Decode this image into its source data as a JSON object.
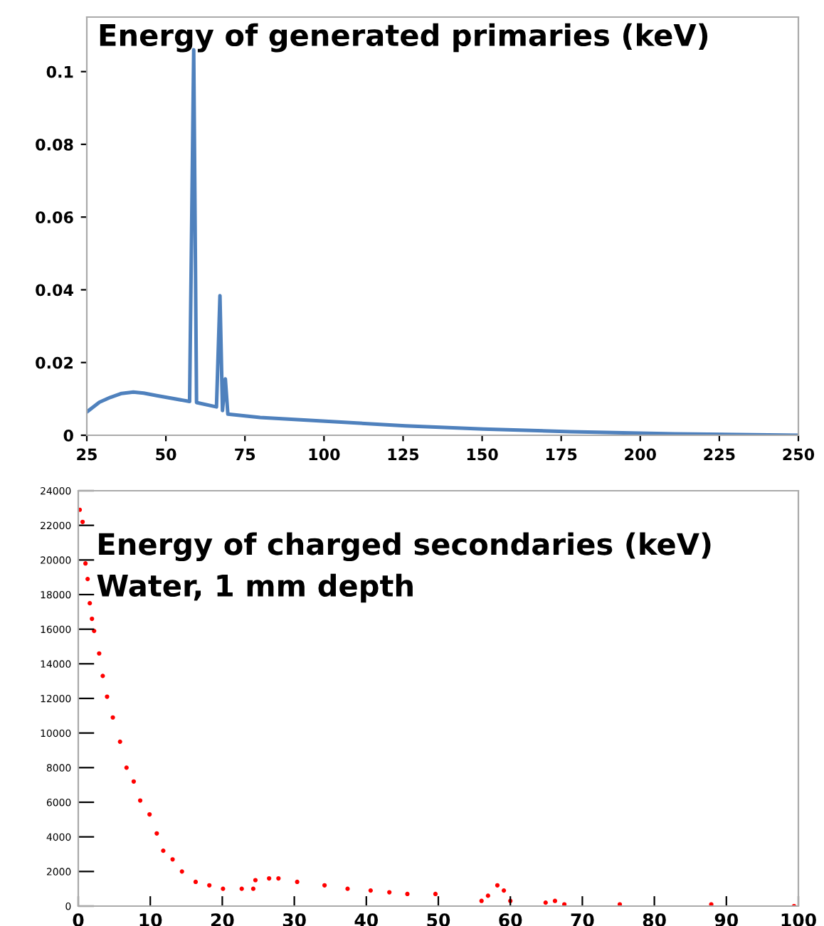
{
  "chart_data": [
    {
      "type": "line",
      "title": "Energy of generated primaries (keV)",
      "series": [
        {
          "color": "#4f81bd",
          "x": [
            25,
            29,
            32.4,
            36,
            39.7,
            43,
            47.1,
            57.5,
            58.8,
            59.7,
            66,
            67.1,
            67.9,
            68.8,
            69.6,
            79.8,
            99.5,
            125.7,
            150.4,
            178,
            210.8,
            250
          ],
          "values": [
            0.0064,
            0.0091,
            0.0104,
            0.0115,
            0.0119,
            0.0116,
            0.0109,
            0.0093,
            0.106,
            0.009,
            0.0078,
            0.0384,
            0.0068,
            0.0155,
            0.0058,
            0.0049,
            0.0039,
            0.0026,
            0.0017,
            0.001,
            0.0004,
            0.0
          ]
        }
      ],
      "xlim": [
        25,
        250
      ],
      "xticks": [
        25,
        50,
        75,
        100,
        125,
        150,
        175,
        200,
        225,
        250
      ],
      "ylim": [
        0,
        0.115
      ],
      "yticks": [
        0,
        0.02,
        0.04,
        0.06,
        0.08,
        0.1
      ],
      "grid": false,
      "marker": "none",
      "line_style": "solid"
    },
    {
      "type": "scatter",
      "title": "Energy of charged secondaries (keV)",
      "subtitle": "Water, 1 mm depth",
      "series": [
        {
          "color": "#ff0000",
          "x": [
            0.2,
            0.6,
            1.0,
            1.3,
            1.6,
            1.9,
            2.2,
            2.9,
            3.4,
            4.0,
            4.8,
            5.8,
            6.7,
            7.7,
            8.6,
            9.9,
            10.9,
            11.8,
            13.1,
            14.4,
            16.3,
            18.2,
            20.1,
            22.7,
            24.3,
            24.6,
            26.5,
            27.8,
            30.4,
            34.2,
            37.4,
            40.6,
            43.2,
            45.7,
            49.6,
            56.0,
            56.9,
            58.2,
            59.1,
            60.0,
            64.9,
            66.2,
            67.5,
            75.2,
            87.9,
            99.4
          ],
          "values": [
            22900,
            22200,
            19800,
            18900,
            17500,
            16600,
            15900,
            14600,
            13300,
            12100,
            10900,
            9500,
            8000,
            7200,
            6100,
            5300,
            4200,
            3200,
            2700,
            2000,
            1400,
            1200,
            1000,
            1000,
            1000,
            1500,
            1600,
            1600,
            1400,
            1200,
            1000,
            900,
            800,
            700,
            700,
            300,
            600,
            1200,
            900,
            300,
            200,
            300,
            100,
            100,
            100,
            0
          ]
        }
      ],
      "xlim": [
        0,
        100
      ],
      "xticks": [
        0,
        10,
        20,
        30,
        40,
        50,
        60,
        70,
        80,
        90,
        100
      ],
      "ylim": [
        0,
        24000
      ],
      "yticks": [
        0,
        2000,
        4000,
        6000,
        8000,
        10000,
        12000,
        14000,
        16000,
        18000,
        20000,
        22000,
        24000
      ],
      "grid": false,
      "marker": "circle"
    }
  ]
}
